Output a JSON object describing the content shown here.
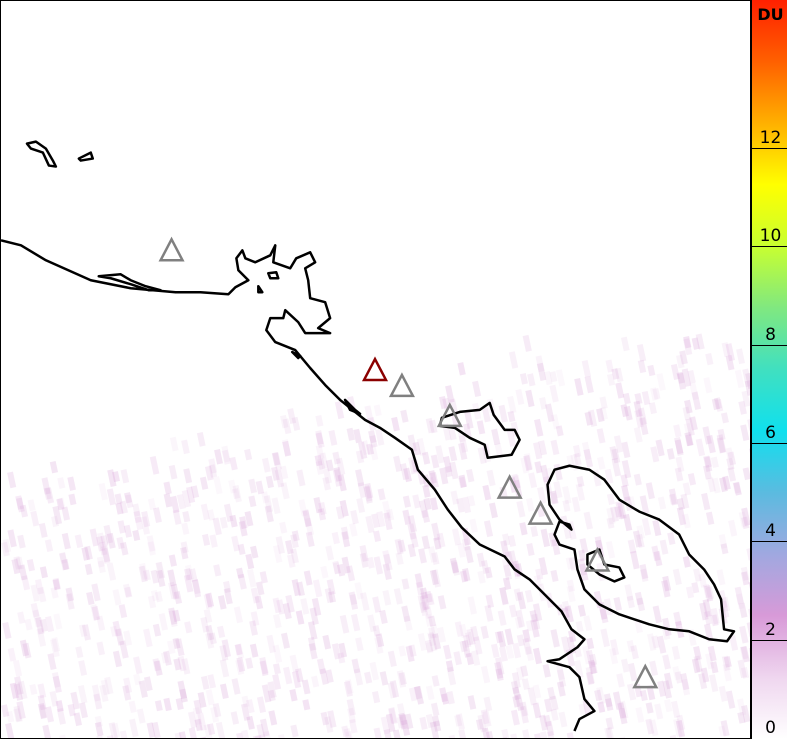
{
  "colorbar": {
    "unit": "DU",
    "ticks": [
      "0",
      "2",
      "4",
      "6",
      "8",
      "10",
      "12"
    ],
    "range": [
      0,
      15
    ],
    "colors": [
      "#ffffff",
      "#efd6ef",
      "#d89ad8",
      "#a0a8e0",
      "#5bbbe0",
      "#10e0ee",
      "#40e0c0",
      "#80e880",
      "#c8ff30",
      "#ffff00",
      "#ffb000",
      "#ff6000",
      "#ff2000"
    ]
  },
  "map": {
    "coastline_color": "#000000",
    "volcano_markers": [
      {
        "state": "inactive",
        "color": "#808080"
      },
      {
        "state": "active",
        "color": "#8b0000"
      },
      {
        "state": "inactive",
        "color": "#808080"
      },
      {
        "state": "inactive",
        "color": "#808080"
      },
      {
        "state": "inactive",
        "color": "#808080"
      },
      {
        "state": "inactive",
        "color": "#808080"
      },
      {
        "state": "inactive",
        "color": "#808080"
      },
      {
        "state": "inactive",
        "color": "#808080"
      }
    ]
  }
}
